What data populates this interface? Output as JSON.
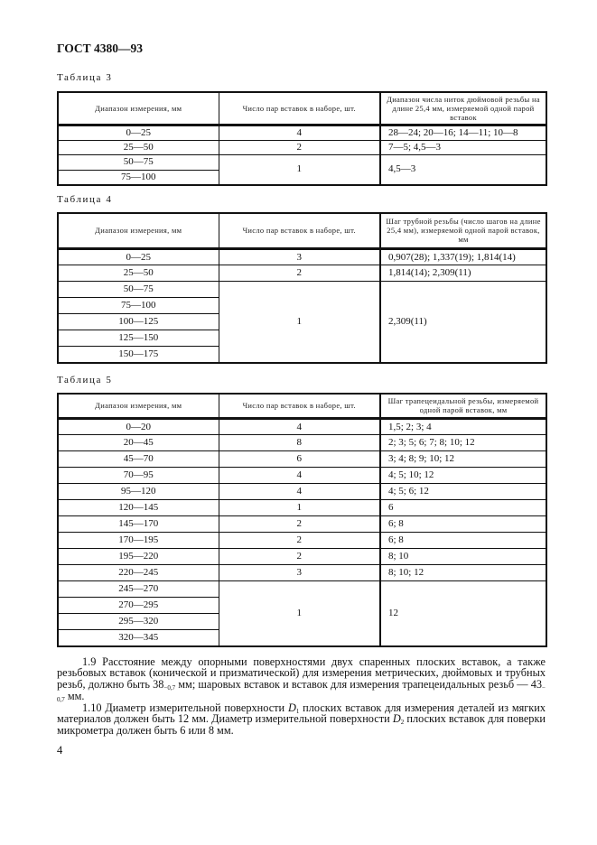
{
  "header": "ГОСТ 4380—93",
  "tables": [
    {
      "label": "Таблица   3",
      "columns": [
        "Диапазон измерения,  мм",
        "Число пар вставок в наборе,  шт.",
        "Диапазон числа ниток дюймовой резьбы на длине 25,4 мм,  измеряемой одной парой вставок"
      ],
      "groups": [
        {
          "ranges": [
            "0—25"
          ],
          "count": "4",
          "values": "28—24; 20—16; 14—11; 10—8"
        },
        {
          "ranges": [
            "25—50"
          ],
          "count": "2",
          "values": "7—5; 4,5—3"
        },
        {
          "ranges": [
            "50—75",
            "75—100"
          ],
          "count": "1",
          "values": "4,5—3"
        }
      ]
    },
    {
      "label": "Таблица 4",
      "columns": [
        "Диапазон измерения,  мм",
        "Число пар вставок в наборе,  шт.",
        "Шаг трубной резьбы (число шагов на длине 25,4 мм),  измеряемой одной парой вставок,  мм"
      ],
      "groups": [
        {
          "ranges": [
            "0—25"
          ],
          "count": "3",
          "values": "0,907(28); 1,337(19); 1,814(14)"
        },
        {
          "ranges": [
            "25—50"
          ],
          "count": "2",
          "values": "1,814(14); 2,309(11)"
        },
        {
          "ranges": [
            "50—75",
            "75—100",
            "100—125",
            "125—150",
            "150—175"
          ],
          "count": "1",
          "values": "2,309(11)"
        }
      ]
    },
    {
      "label": "Таблица   5",
      "columns": [
        "Диапазон измерения,  мм",
        "Число пар вставок в наборе,  шт.",
        "Шаг трапецеидальной резьбы, измеряемой одной парой вставок,  мм"
      ],
      "groups": [
        {
          "ranges": [
            "0—20"
          ],
          "count": "4",
          "values": "1,5; 2; 3; 4"
        },
        {
          "ranges": [
            "20—45"
          ],
          "count": "8",
          "values": "2; 3; 5; 6; 7; 8; 10; 12"
        },
        {
          "ranges": [
            "45—70"
          ],
          "count": "6",
          "values": "3; 4; 8; 9; 10; 12"
        },
        {
          "ranges": [
            "70—95"
          ],
          "count": "4",
          "values": "4; 5; 10; 12"
        },
        {
          "ranges": [
            "95—120"
          ],
          "count": "4",
          "values": "4; 5; 6; 12"
        },
        {
          "ranges": [
            "120—145"
          ],
          "count": "1",
          "values": "6"
        },
        {
          "ranges": [
            "145—170"
          ],
          "count": "2",
          "values": "6; 8"
        },
        {
          "ranges": [
            "170—195"
          ],
          "count": "2",
          "values": "6; 8"
        },
        {
          "ranges": [
            "195—220"
          ],
          "count": "2",
          "values": "8; 10"
        },
        {
          "ranges": [
            "220—245"
          ],
          "count": "3",
          "values": "8; 10; 12"
        },
        {
          "ranges": [
            "245—270",
            "270—295",
            "295—320",
            "320—345"
          ],
          "count": "1",
          "values": "12"
        }
      ]
    }
  ],
  "para_1_9": {
    "text_a": "1.9 Расстояние между опорными поверхностями двух спаренных плоских вставок, а также резьбовых вставок (конической и призматической) для измерения метрических, дюймовых и трубных резьб, должно быть 38",
    "tol_a": "−0,7",
    "text_b": " мм; шаровых вставок и вставок для измерения трапецеидальных резьб — 43",
    "tol_b": "− 0,7",
    "text_c": " мм."
  },
  "para_1_10": {
    "text_a": "1.10 Диаметр измерительной поверхности ",
    "d1": "D",
    "d1_sub": "1",
    "text_b": " плоских вставок для измерения деталей из мягких материалов должен быть 12 мм. Диаметр измерительной поверхности ",
    "d2": "D",
    "d2_sub": "2",
    "text_c": " плоских вставок для поверки микрометра должен быть 6 или 8 мм."
  },
  "page_number": "4"
}
